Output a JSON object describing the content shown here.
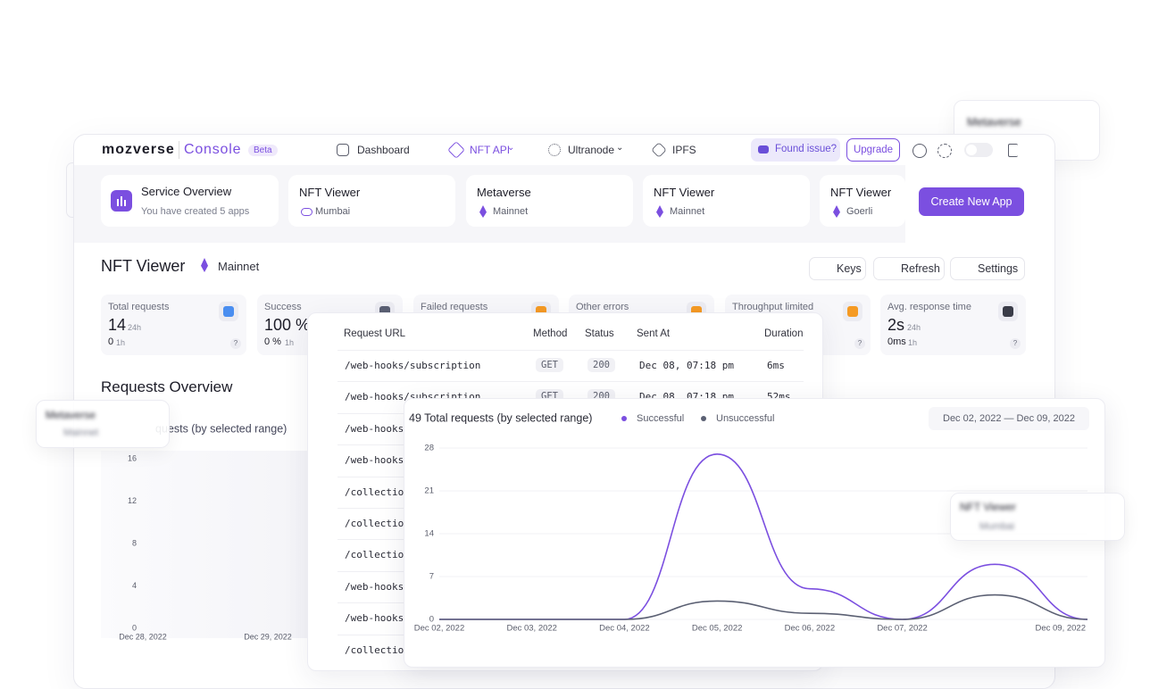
{
  "nav": {
    "brand": "mozverse",
    "product": "Console",
    "badge": "Beta",
    "items": [
      "Dashboard",
      "NFT API",
      "Ultranode",
      "IPFS"
    ],
    "report": "Found issue?",
    "upgrade": "Upgrade"
  },
  "overview": {
    "title": "Service Overview",
    "subtitle": "You have created 5 apps"
  },
  "apps": [
    {
      "name": "NFT Viewer",
      "network": "Mumbai"
    },
    {
      "name": "Metaverse",
      "network": "Mainnet"
    },
    {
      "name": "NFT Viewer",
      "network": "Mainnet"
    },
    {
      "name": "NFT Viewer",
      "network": "Goerli"
    }
  ],
  "create_button": "Create New App",
  "app_header": {
    "name": "NFT Viewer",
    "network": "Mainnet",
    "actions": [
      "Keys",
      "Refresh",
      "Settings"
    ]
  },
  "stats": [
    {
      "label": "Total requests",
      "value": "14",
      "period": "24h",
      "sub_value": "0",
      "sub_period": "1h"
    },
    {
      "label": "Success",
      "value": "100 %",
      "sub_value": "0 %",
      "sub_period": "1h"
    },
    {
      "label": "Failed requests"
    },
    {
      "label": "Other errors"
    },
    {
      "label": "Throughput limited"
    },
    {
      "label": "Avg. response time",
      "value": "2s",
      "period": "24h",
      "sub_value": "0ms",
      "sub_period": "1h"
    }
  ],
  "section_title": "Requests Overview",
  "table": {
    "columns": [
      "Request URL",
      "Method",
      "Status",
      "Sent At",
      "Duration"
    ],
    "rows": [
      [
        "/web-hooks/subscription",
        "GET",
        "200",
        "Dec 08, 07:18 pm",
        "6ms"
      ],
      [
        "/web-hooks/subscription",
        "GET",
        "200",
        "Dec 08, 07:18 pm",
        "52ms"
      ],
      [
        "/web-hooks"
      ],
      [
        "/web-hooks"
      ],
      [
        "/collectio"
      ],
      [
        "/collectio"
      ],
      [
        "/collectio"
      ],
      [
        "/web-hooks"
      ],
      [
        "/web-hooks"
      ],
      [
        "/collectio"
      ]
    ]
  },
  "floating_cards": [
    {
      "name": "Metaverse"
    },
    {
      "name": "Metaverse",
      "network": "Mainnet"
    },
    {
      "name": "NFT Viewer",
      "network": "Mumbai"
    }
  ],
  "chart_data": [
    {
      "type": "line",
      "title": "quests (by selected range)",
      "categories": [
        "Dec 28, 2022",
        "Dec 29, 2022"
      ],
      "ylim": [
        0,
        16
      ],
      "yticks": [
        0,
        4,
        8,
        12,
        16
      ],
      "grid": false
    },
    {
      "type": "line",
      "title": "49 Total requests (by selected range)",
      "date_range": "Dec 02, 2022 — Dec 09, 2022",
      "categories": [
        "Dec 02, 2022",
        "Dec 03, 2022",
        "Dec 04, 2022",
        "Dec 05, 2022",
        "Dec 06, 2022",
        "Dec 07, 2022",
        null,
        "Dec 09, 2022"
      ],
      "series": [
        {
          "name": "Successful",
          "color": "#7b4fe0",
          "values": [
            0,
            0,
            0,
            27,
            5,
            0,
            9,
            0
          ]
        },
        {
          "name": "Unsuccessful",
          "color": "#5b6073",
          "values": [
            0,
            0,
            0,
            3,
            1,
            0,
            4,
            0
          ]
        }
      ],
      "ylim": [
        0,
        28
      ],
      "yticks": [
        0,
        7,
        14,
        21,
        28
      ],
      "grid": true
    }
  ]
}
